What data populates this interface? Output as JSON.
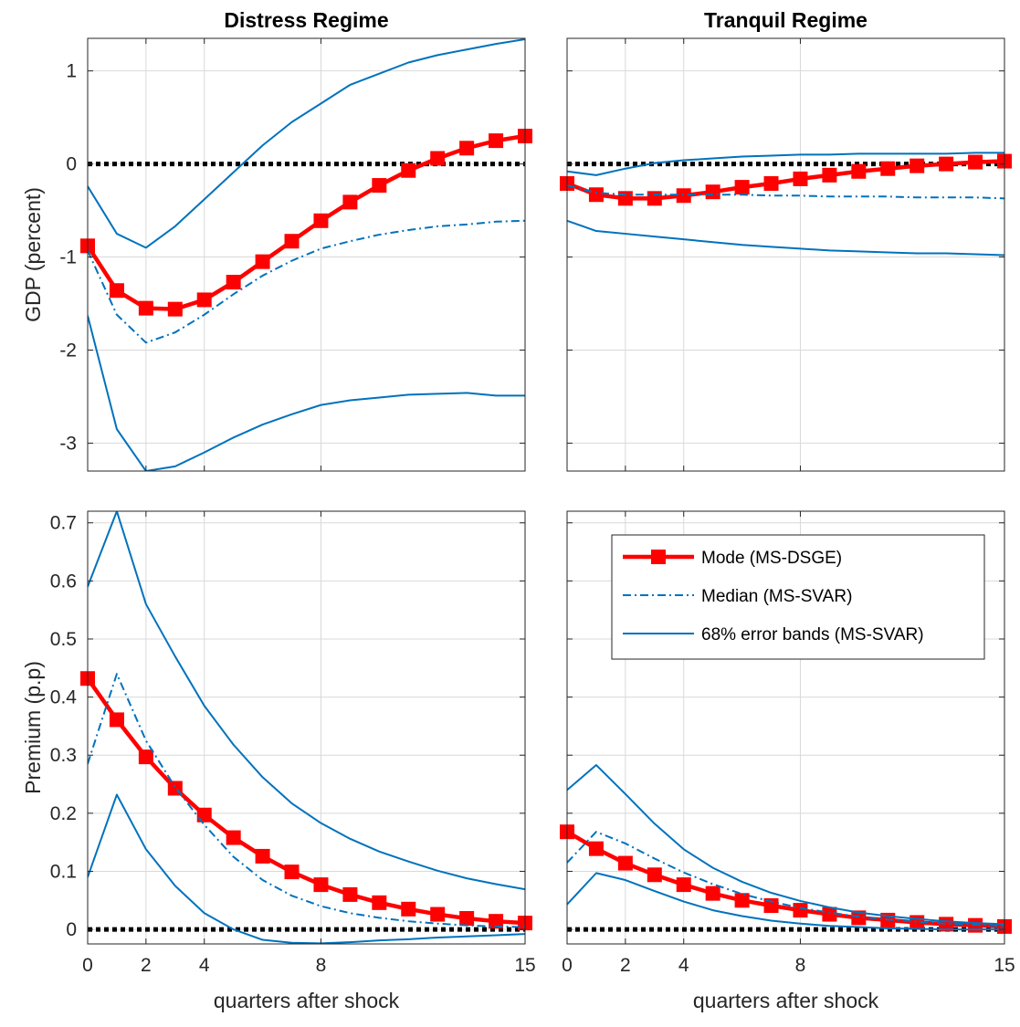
{
  "colors": {
    "dsge": "#ff0000",
    "svar": "#0072bd",
    "zero": "#000000",
    "grid": "#d9d9d9"
  },
  "xlabel": "quarters after shock",
  "legend": {
    "placement": "top-right of bottom-right panel",
    "items": [
      "Mode (MS-DSGE)",
      "Median (MS-SVAR)",
      "68% error bands (MS-SVAR)"
    ]
  },
  "chart_data": [
    {
      "type": "line",
      "title": "Distress Regime",
      "ylabel": "GDP (percent)",
      "xlabel": "",
      "xlim": [
        0,
        15
      ],
      "ylim": [
        -3.3,
        1.35
      ],
      "xticks": [
        0,
        2,
        4,
        8,
        15
      ],
      "yticks": [
        -3,
        -2,
        -1,
        0,
        1
      ],
      "grid": true,
      "x": [
        0,
        1,
        2,
        3,
        4,
        5,
        6,
        7,
        8,
        9,
        10,
        11,
        12,
        13,
        14,
        15
      ],
      "series": [
        {
          "name": "Mode (MS-DSGE)",
          "style": "dsge",
          "values": [
            -0.88,
            -1.36,
            -1.55,
            -1.56,
            -1.46,
            -1.27,
            -1.05,
            -0.83,
            -0.61,
            -0.41,
            -0.23,
            -0.07,
            0.06,
            0.17,
            0.25,
            0.3
          ]
        },
        {
          "name": "Median (MS-SVAR)",
          "style": "median",
          "values": [
            -0.93,
            -1.62,
            -1.92,
            -1.81,
            -1.62,
            -1.4,
            -1.2,
            -1.04,
            -0.91,
            -0.83,
            -0.76,
            -0.71,
            -0.67,
            -0.65,
            -0.62,
            -0.61
          ]
        },
        {
          "name": "68% error bands (MS-SVAR)",
          "style": "band",
          "values": [
            -0.24,
            -0.75,
            -0.9,
            -0.67,
            -0.38,
            -0.09,
            0.2,
            0.45,
            0.65,
            0.85,
            0.97,
            1.09,
            1.17,
            1.23,
            1.29,
            1.34
          ]
        },
        {
          "name": "68% error bands (MS-SVAR)",
          "style": "band",
          "values": [
            -1.63,
            -2.85,
            -3.3,
            -3.25,
            -3.1,
            -2.94,
            -2.8,
            -2.69,
            -2.59,
            -2.54,
            -2.51,
            -2.48,
            -2.47,
            -2.46,
            -2.49,
            -2.49
          ]
        }
      ]
    },
    {
      "type": "line",
      "title": "Tranquil Regime",
      "ylabel": "",
      "xlabel": "",
      "xlim": [
        0,
        15
      ],
      "ylim": [
        -3.3,
        1.35
      ],
      "xticks": [
        0,
        2,
        4,
        8,
        15
      ],
      "yticks": [
        -3,
        -2,
        -1,
        0,
        1
      ],
      "grid": true,
      "x": [
        0,
        1,
        2,
        3,
        4,
        5,
        6,
        7,
        8,
        9,
        10,
        11,
        12,
        13,
        14,
        15
      ],
      "series": [
        {
          "name": "Mode (MS-DSGE)",
          "style": "dsge",
          "values": [
            -0.21,
            -0.33,
            -0.37,
            -0.37,
            -0.34,
            -0.3,
            -0.25,
            -0.21,
            -0.16,
            -0.12,
            -0.08,
            -0.05,
            -0.02,
            0.0,
            0.02,
            0.03
          ]
        },
        {
          "name": "Median (MS-SVAR)",
          "style": "median",
          "values": [
            -0.23,
            -0.31,
            -0.33,
            -0.33,
            -0.33,
            -0.33,
            -0.33,
            -0.34,
            -0.34,
            -0.35,
            -0.35,
            -0.35,
            -0.36,
            -0.36,
            -0.36,
            -0.37
          ]
        },
        {
          "name": "68% error bands (MS-SVAR)",
          "style": "band",
          "values": [
            -0.08,
            -0.12,
            -0.05,
            0.01,
            0.04,
            0.06,
            0.08,
            0.09,
            0.1,
            0.1,
            0.11,
            0.11,
            0.11,
            0.11,
            0.12,
            0.12
          ]
        },
        {
          "name": "68% error bands (MS-SVAR)",
          "style": "band",
          "values": [
            -0.61,
            -0.72,
            -0.75,
            -0.78,
            -0.81,
            -0.84,
            -0.87,
            -0.89,
            -0.91,
            -0.93,
            -0.94,
            -0.95,
            -0.96,
            -0.96,
            -0.97,
            -0.98
          ]
        }
      ]
    },
    {
      "type": "line",
      "title": "",
      "ylabel": "Premium (p.p)",
      "xlabel": "quarters after shock",
      "xlim": [
        0,
        15
      ],
      "ylim": [
        -0.025,
        0.72
      ],
      "xticks": [
        0,
        2,
        4,
        8,
        15
      ],
      "yticks": [
        0,
        0.1,
        0.2,
        0.3,
        0.4,
        0.5,
        0.6,
        0.7
      ],
      "grid": true,
      "x": [
        0,
        1,
        2,
        3,
        4,
        5,
        6,
        7,
        8,
        9,
        10,
        11,
        12,
        13,
        14,
        15
      ],
      "series": [
        {
          "name": "Mode (MS-DSGE)",
          "style": "dsge",
          "values": [
            0.432,
            0.361,
            0.297,
            0.243,
            0.197,
            0.158,
            0.126,
            0.099,
            0.077,
            0.06,
            0.046,
            0.035,
            0.026,
            0.019,
            0.014,
            0.011
          ]
        },
        {
          "name": "Median (MS-SVAR)",
          "style": "median",
          "values": [
            0.285,
            0.44,
            0.325,
            0.245,
            0.18,
            0.125,
            0.085,
            0.058,
            0.04,
            0.028,
            0.02,
            0.014,
            0.01,
            0.007,
            0.005,
            0.004
          ]
        },
        {
          "name": "68% error bands (MS-SVAR)",
          "style": "band",
          "values": [
            0.59,
            0.72,
            0.56,
            0.47,
            0.385,
            0.318,
            0.262,
            0.217,
            0.183,
            0.156,
            0.134,
            0.117,
            0.101,
            0.088,
            0.078,
            0.069
          ]
        },
        {
          "name": "68% error bands (MS-SVAR)",
          "style": "band",
          "values": [
            0.09,
            0.232,
            0.138,
            0.075,
            0.028,
            0.0,
            -0.018,
            -0.023,
            -0.024,
            -0.022,
            -0.019,
            -0.017,
            -0.014,
            -0.012,
            -0.01,
            -0.008
          ]
        }
      ]
    },
    {
      "type": "line",
      "title": "",
      "ylabel": "",
      "xlabel": "quarters after shock",
      "xlim": [
        0,
        15
      ],
      "ylim": [
        -0.025,
        0.72
      ],
      "xticks": [
        0,
        2,
        4,
        8,
        15
      ],
      "yticks": [
        0,
        0.1,
        0.2,
        0.3,
        0.4,
        0.5,
        0.6,
        0.7
      ],
      "grid": true,
      "x": [
        0,
        1,
        2,
        3,
        4,
        5,
        6,
        7,
        8,
        9,
        10,
        11,
        12,
        13,
        14,
        15
      ],
      "series": [
        {
          "name": "Mode (MS-DSGE)",
          "style": "dsge",
          "values": [
            0.168,
            0.139,
            0.114,
            0.094,
            0.077,
            0.062,
            0.05,
            0.041,
            0.033,
            0.026,
            0.02,
            0.016,
            0.012,
            0.009,
            0.007,
            0.005
          ]
        },
        {
          "name": "Median (MS-SVAR)",
          "style": "median",
          "values": [
            0.115,
            0.168,
            0.148,
            0.122,
            0.098,
            0.078,
            0.061,
            0.048,
            0.037,
            0.029,
            0.022,
            0.017,
            0.013,
            0.01,
            0.008,
            0.006
          ]
        },
        {
          "name": "68% error bands (MS-SVAR)",
          "style": "band",
          "values": [
            0.24,
            0.283,
            0.233,
            0.182,
            0.138,
            0.106,
            0.082,
            0.063,
            0.049,
            0.038,
            0.029,
            0.023,
            0.018,
            0.014,
            0.011,
            0.009
          ]
        },
        {
          "name": "68% error bands (MS-SVAR)",
          "style": "band",
          "values": [
            0.043,
            0.097,
            0.085,
            0.066,
            0.048,
            0.033,
            0.023,
            0.015,
            0.01,
            0.006,
            0.004,
            0.002,
            0.001,
            0.0,
            0.0,
            0.0
          ]
        }
      ]
    }
  ]
}
